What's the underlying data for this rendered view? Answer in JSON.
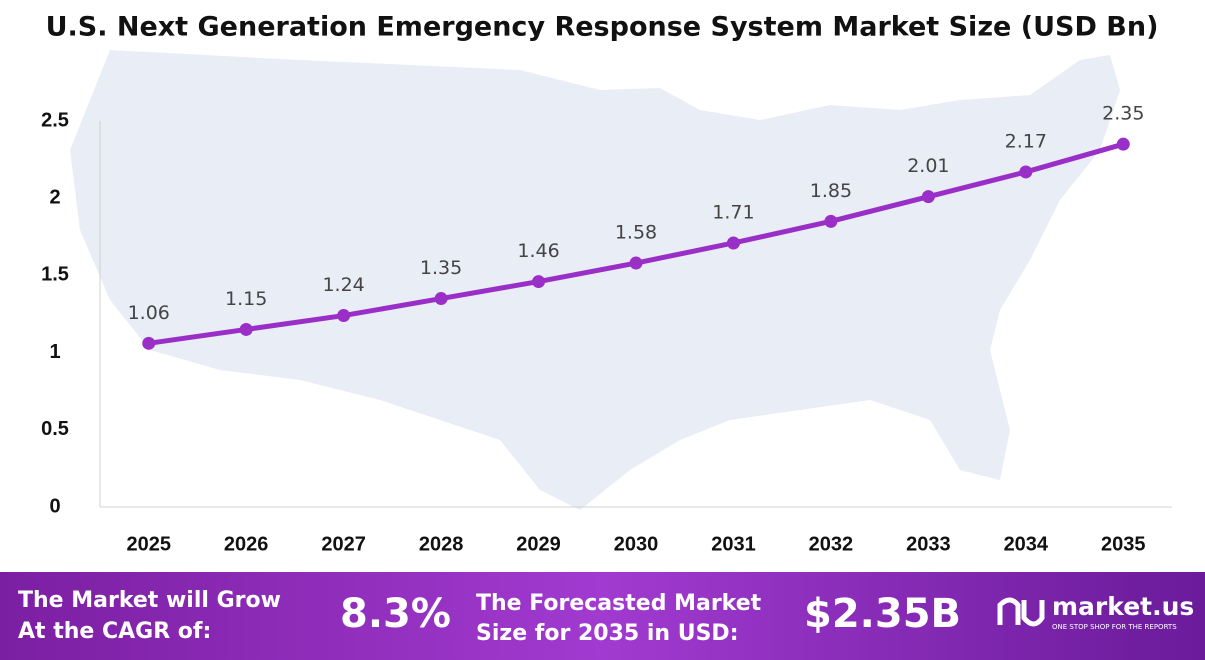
{
  "chart_data": {
    "type": "line",
    "title": "U.S. Next Generation Emergency Response System Market Size (USD Bn)",
    "categories": [
      "2025",
      "2026",
      "2027",
      "2028",
      "2029",
      "2030",
      "2031",
      "2032",
      "2033",
      "2034",
      "2035"
    ],
    "values": [
      1.06,
      1.15,
      1.24,
      1.35,
      1.46,
      1.58,
      1.71,
      1.85,
      2.01,
      2.17,
      2.35
    ],
    "color": "#9a2fc7",
    "ylim": [
      0,
      2.5
    ],
    "yticks": [
      0,
      0.5,
      1,
      1.5,
      2,
      2.5
    ],
    "grid": false
  },
  "banner": {
    "cagr_text": [
      "The Market will Grow",
      "At the CAGR of:"
    ],
    "cagr_value": "8.3%",
    "forecast_text": [
      "The Forecasted Market",
      "Size for 2035 in USD:"
    ],
    "forecast_value": "$2.35B",
    "brand": "market.us",
    "tagline": "ONE STOP SHOP FOR THE REPORTS"
  }
}
